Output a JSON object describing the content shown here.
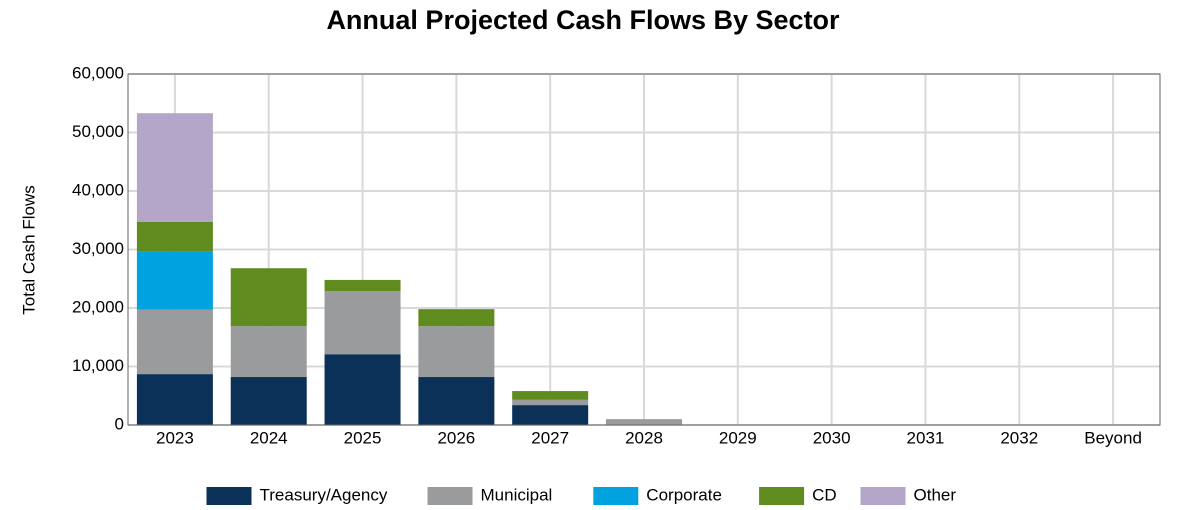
{
  "chart_data": {
    "type": "stacked_bar",
    "title": "Annual Projected Cash Flows By Sector",
    "y_label": "Total Cash Flows",
    "categories": [
      "2023",
      "2024",
      "2025",
      "2026",
      "2027",
      "2028",
      "2029",
      "2030",
      "2031",
      "2032",
      "Beyond"
    ],
    "series": [
      {
        "name": "Treasury/Agency",
        "color": "#0b3158",
        "values": [
          8700,
          8200,
          12100,
          8200,
          3400,
          0,
          0,
          0,
          0,
          0,
          0
        ]
      },
      {
        "name": "Municipal",
        "color": "#9a9b9d",
        "values": [
          11000,
          8700,
          10800,
          8700,
          900,
          1000,
          0,
          0,
          0,
          0,
          0
        ]
      },
      {
        "name": "Corporate",
        "color": "#00a3e0",
        "values": [
          9900,
          0,
          0,
          0,
          0,
          0,
          0,
          0,
          0,
          0,
          0
        ]
      },
      {
        "name": "CD",
        "color": "#5f8b1f",
        "values": [
          5100,
          9900,
          1900,
          2900,
          1500,
          0,
          0,
          0,
          0,
          0,
          0
        ]
      },
      {
        "name": "Other",
        "color": "#b3a6c9",
        "values": [
          18600,
          0,
          0,
          0,
          0,
          0,
          0,
          0,
          0,
          0,
          0
        ]
      }
    ],
    "ylim": [
      0,
      60000
    ],
    "yticks": [
      0,
      {
        "value": 10000,
        "label": "10,000"
      },
      {
        "value": 20000,
        "label": "20,000"
      },
      {
        "value": 30000,
        "label": "30,000"
      },
      {
        "value": 40000,
        "label": "40,000"
      },
      {
        "value": 50000,
        "label": "50,000"
      },
      {
        "value": 60000,
        "label": "60,000"
      }
    ],
    "grid": true,
    "legend": "bottom"
  }
}
